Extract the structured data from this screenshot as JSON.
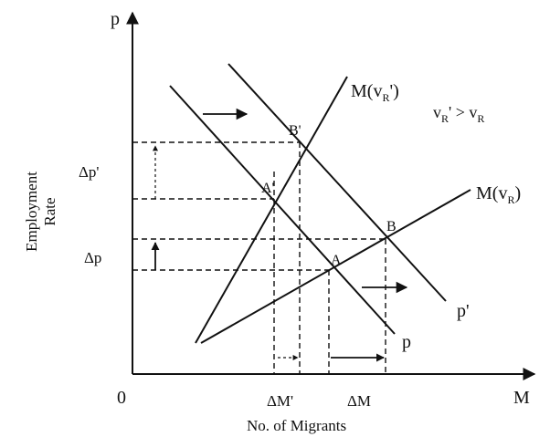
{
  "axes": {
    "y_symbol": "p",
    "x_symbol": "M",
    "origin": "0",
    "y_title_line1": "Employment",
    "y_title_line2": "Rate",
    "x_title": "No. of Migrants"
  },
  "curves": {
    "m_vr_prime_main": "M(v",
    "m_vr_prime_sub": "R",
    "m_vr_prime_tail": "')",
    "m_vr_main": "M(v",
    "m_vr_sub": "R",
    "m_vr_tail": ")",
    "p_label": "p",
    "p_prime_label": "p'"
  },
  "condition": {
    "left_main": "v",
    "left_sub": "R",
    "left_tail": "' > v",
    "right_sub": "R"
  },
  "points": {
    "A": "A",
    "B": "B",
    "A_prime": "A'",
    "B_prime": "B'"
  },
  "deltas": {
    "dp": "Δp",
    "dp_prime": "Δp'",
    "dM": "ΔM",
    "dM_prime": "ΔM'"
  }
}
